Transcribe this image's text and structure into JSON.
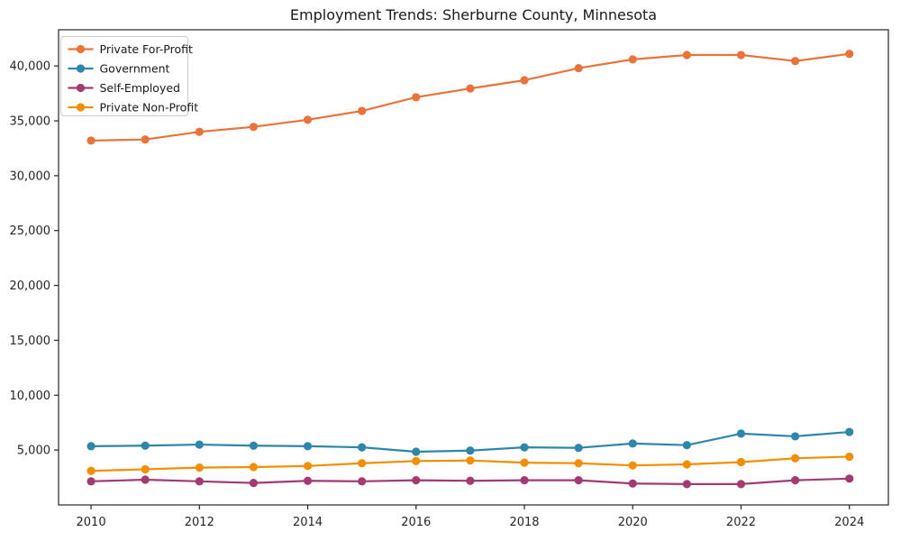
{
  "figure": {
    "background": "#ffffff",
    "frame_color": "#262626",
    "tick_color": "#262626",
    "text_color": "#1a1a1a",
    "legend_border_color": "#cccccc",
    "legend_background": "#ffffff"
  },
  "chart_data": {
    "type": "line",
    "title": "Employment Trends: Sherburne County, Minnesota",
    "xlabel": "",
    "ylabel": "",
    "grid": false,
    "marker": "circle",
    "legend_position": "upper-left",
    "x": [
      2010,
      2011,
      2012,
      2013,
      2014,
      2015,
      2016,
      2017,
      2018,
      2019,
      2020,
      2021,
      2022,
      2023,
      2024
    ],
    "series": [
      {
        "name": "Private For-Profit",
        "color": "#E8743B",
        "values": [
          33200,
          33300,
          34000,
          34450,
          35100,
          35900,
          37150,
          37950,
          38700,
          39800,
          40600,
          41000,
          41000,
          40450,
          41100
        ]
      },
      {
        "name": "Government",
        "color": "#2E86AB",
        "values": [
          5350,
          5400,
          5500,
          5400,
          5350,
          5250,
          4850,
          4950,
          5250,
          5200,
          5600,
          5450,
          6500,
          6250,
          6650
        ]
      },
      {
        "name": "Self-Employed",
        "color": "#A23B72",
        "values": [
          2150,
          2300,
          2150,
          2000,
          2200,
          2150,
          2250,
          2200,
          2250,
          2250,
          1950,
          1900,
          1900,
          2250,
          2400
        ]
      },
      {
        "name": "Private Non-Profit",
        "color": "#F18F01",
        "values": [
          3100,
          3250,
          3400,
          3450,
          3550,
          3800,
          4000,
          4050,
          3850,
          3800,
          3600,
          3700,
          3900,
          4250,
          4400
        ]
      }
    ],
    "xlim": [
      2009.4,
      2024.72
    ],
    "ylim": [
      0,
      43300
    ],
    "xticks": [
      2010,
      2012,
      2014,
      2016,
      2018,
      2020,
      2022,
      2024
    ],
    "xtick_labels": [
      "2010",
      "2012",
      "2014",
      "2016",
      "2018",
      "2020",
      "2022",
      "2024"
    ],
    "yticks": [
      5000,
      10000,
      15000,
      20000,
      25000,
      30000,
      35000,
      40000
    ],
    "ytick_labels": [
      "5,000",
      "10,000",
      "15,000",
      "20,000",
      "25,000",
      "30,000",
      "35,000",
      "40,000"
    ]
  }
}
